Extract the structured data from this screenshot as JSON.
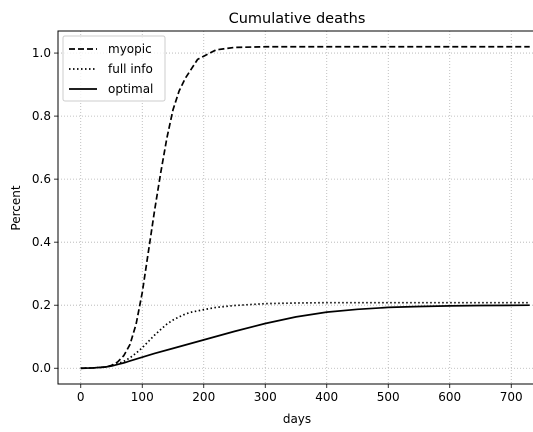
{
  "chart_data": {
    "type": "line",
    "title": "Cumulative deaths",
    "xlabel": "days",
    "ylabel": "Percent",
    "xlim": [
      -37,
      737
    ],
    "ylim": [
      -0.05,
      1.07
    ],
    "xticks": [
      0,
      100,
      200,
      300,
      400,
      500,
      600,
      700
    ],
    "yticks": [
      0.0,
      0.2,
      0.4,
      0.6,
      0.8,
      1.0
    ],
    "xtick_labels": [
      "0",
      "100",
      "200",
      "300",
      "400",
      "500",
      "600",
      "700"
    ],
    "ytick_labels": [
      "0.0",
      "0.2",
      "0.4",
      "0.6",
      "0.8",
      "1.0"
    ],
    "grid": true,
    "legend_position": "top-left",
    "series": [
      {
        "name": "myopic",
        "style": "dashed",
        "color": "#000000",
        "x": [
          0,
          20,
          40,
          50,
          60,
          70,
          80,
          90,
          100,
          110,
          120,
          130,
          140,
          150,
          160,
          170,
          180,
          190,
          200,
          220,
          250,
          300,
          400,
          500,
          600,
          730
        ],
        "y": [
          0.0,
          0.001,
          0.004,
          0.009,
          0.02,
          0.04,
          0.075,
          0.14,
          0.24,
          0.37,
          0.5,
          0.62,
          0.73,
          0.82,
          0.88,
          0.92,
          0.95,
          0.98,
          0.99,
          1.01,
          1.018,
          1.02,
          1.02,
          1.02,
          1.02,
          1.02
        ]
      },
      {
        "name": "full info",
        "style": "dotted",
        "color": "#000000",
        "x": [
          0,
          20,
          40,
          50,
          60,
          70,
          80,
          90,
          100,
          110,
          120,
          130,
          140,
          150,
          160,
          170,
          180,
          200,
          220,
          250,
          300,
          350,
          400,
          500,
          600,
          730
        ],
        "y": [
          0.0,
          0.001,
          0.004,
          0.008,
          0.014,
          0.022,
          0.033,
          0.048,
          0.065,
          0.085,
          0.105,
          0.123,
          0.14,
          0.153,
          0.163,
          0.172,
          0.178,
          0.186,
          0.193,
          0.199,
          0.205,
          0.207,
          0.208,
          0.208,
          0.208,
          0.208
        ]
      },
      {
        "name": "optimal",
        "style": "solid",
        "color": "#000000",
        "x": [
          0,
          20,
          40,
          50,
          60,
          70,
          80,
          100,
          120,
          150,
          200,
          250,
          300,
          350,
          400,
          450,
          500,
          550,
          600,
          650,
          730
        ],
        "y": [
          0.0,
          0.001,
          0.004,
          0.007,
          0.012,
          0.017,
          0.023,
          0.035,
          0.047,
          0.063,
          0.09,
          0.117,
          0.142,
          0.163,
          0.178,
          0.187,
          0.193,
          0.196,
          0.198,
          0.199,
          0.2
        ]
      }
    ]
  }
}
